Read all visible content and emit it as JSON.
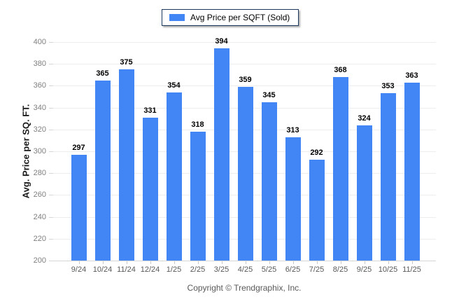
{
  "chart_data": {
    "type": "bar",
    "title": "",
    "legend": [
      "Avg Price per SQFT (Sold)"
    ],
    "legend_position": "top-center",
    "categories": [
      "9/24",
      "10/24",
      "11/24",
      "12/24",
      "1/25",
      "2/25",
      "3/25",
      "4/25",
      "5/25",
      "6/25",
      "7/25",
      "8/25",
      "9/25",
      "10/25",
      "11/25"
    ],
    "values": [
      297,
      365,
      375,
      331,
      354,
      318,
      394,
      359,
      345,
      313,
      292,
      368,
      324,
      353,
      363
    ],
    "xlabel": "",
    "ylabel": "Avg. Price per SQ. FT.",
    "ylim": [
      200,
      400
    ],
    "ytick_step": 20,
    "grid": true,
    "bar_color": "#4285f4",
    "grid_color": "#ededed",
    "legend_border_color": "#1c3a5e"
  },
  "footer": {
    "text": "Copyright © Trendgraphix, Inc."
  }
}
